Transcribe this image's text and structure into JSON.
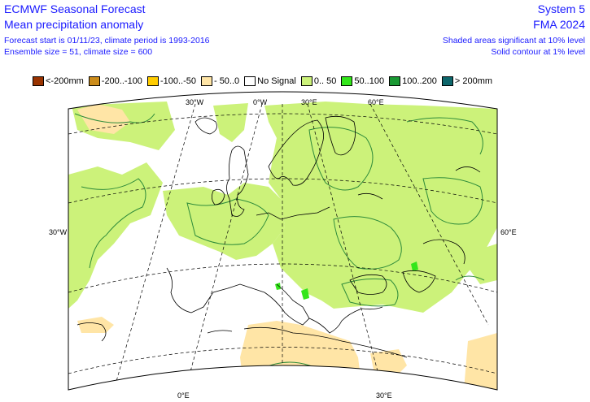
{
  "header": {
    "title_left_1": "ECMWF Seasonal Forecast",
    "title_left_2": "Mean precipitation anomaly",
    "info_left_1": "Forecast start is 01/11/23, climate period is 1993-2016",
    "info_left_2": "Ensemble size = 51, climate size = 600",
    "title_right_1": "System 5",
    "title_right_2": "FMA 2024",
    "info_right_1": "Shaded areas significant at 10% level",
    "info_right_2": "Solid contour at 1% level"
  },
  "legend": [
    {
      "label": "<-200mm",
      "color": "#993300"
    },
    {
      "label": "-200..-100",
      "color": "#cc8c1a"
    },
    {
      "label": "-100..-50",
      "color": "#ffcc00"
    },
    {
      "label": "- 50..0",
      "color": "#ffe5a6"
    },
    {
      "label": "No Signal",
      "color": "#ffffff"
    },
    {
      "label": "0.. 50",
      "color": "#ccf27a"
    },
    {
      "label": "50..100",
      "color": "#33e61a"
    },
    {
      "label": "100..200",
      "color": "#1a9933"
    },
    {
      "label": "> 200mm",
      "color": "#0d666b"
    }
  ],
  "map": {
    "lon_labels": {
      "top_30w": "30°W",
      "top_0": "0°W",
      "top_30e": "30°E",
      "top_60e": "60°E",
      "left_30w": "30°W",
      "right_60e": "60°E",
      "bottom_0e": "0°E",
      "bottom_30e": "30°E"
    },
    "colors": {
      "positive": "#ccf27a",
      "negative": "#ffe5a6",
      "strong_positive": "#33e61a",
      "contour": "#2e8b3a",
      "coast": "#000000",
      "grid": "#000000"
    }
  }
}
